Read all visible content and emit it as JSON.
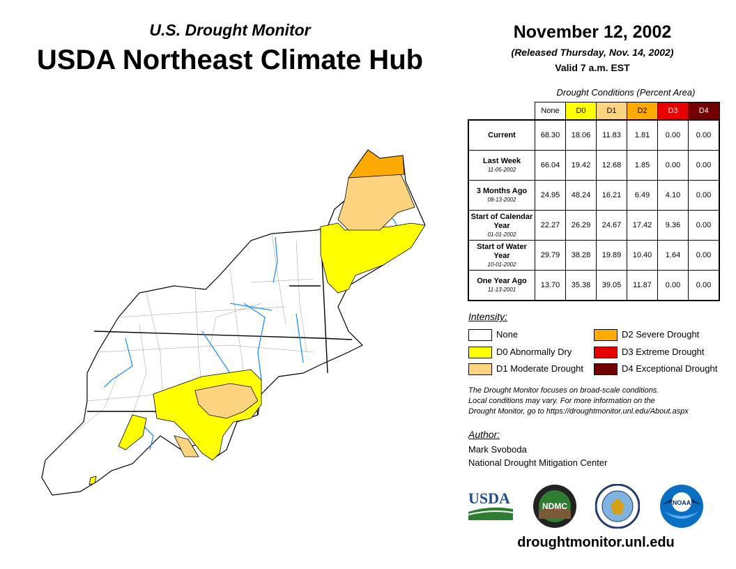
{
  "header": {
    "subtitle": "U.S. Drought Monitor",
    "title": "USDA Northeast Climate Hub",
    "date": "November 12, 2002",
    "released": "(Released Thursday, Nov. 14, 2002)",
    "valid": "Valid 7 a.m. EST"
  },
  "table": {
    "caption": "Drought Conditions (Percent Area)",
    "columns": [
      "None",
      "D0",
      "D1",
      "D2",
      "D3",
      "D4"
    ],
    "rows": [
      {
        "label": "Current",
        "date": "",
        "values": [
          "68.30",
          "18.06",
          "11.83",
          "1.81",
          "0.00",
          "0.00"
        ]
      },
      {
        "label": "Last Week",
        "date": "11-05-2002",
        "values": [
          "66.04",
          "19.42",
          "12.68",
          "1.85",
          "0.00",
          "0.00"
        ]
      },
      {
        "label": "3 Months Ago",
        "date": "08-13-2002",
        "values": [
          "24.95",
          "48.24",
          "16.21",
          "6.49",
          "4.10",
          "0.00"
        ]
      },
      {
        "label": "Start of Calendar Year",
        "date": "01-01-2002",
        "values": [
          "22.27",
          "26.29",
          "24.67",
          "17.42",
          "9.36",
          "0.00"
        ]
      },
      {
        "label": "Start of Water Year",
        "date": "10-01-2002",
        "values": [
          "29.79",
          "38.28",
          "19.89",
          "10.40",
          "1.64",
          "0.00"
        ]
      },
      {
        "label": "One Year Ago",
        "date": "11-13-2001",
        "values": [
          "13.70",
          "35.38",
          "39.05",
          "11.87",
          "0.00",
          "0.00"
        ]
      }
    ]
  },
  "legend": {
    "title": "Intensity:",
    "items": [
      {
        "label": "None",
        "color": "#ffffff"
      },
      {
        "label": "D0 Abnormally Dry",
        "color": "#ffff00"
      },
      {
        "label": "D1 Moderate Drought",
        "color": "#fcd37f"
      },
      {
        "label": "D2 Severe Drought",
        "color": "#ffaa00"
      },
      {
        "label": "D3 Extreme Drought",
        "color": "#e60000"
      },
      {
        "label": "D4 Exceptional Drought",
        "color": "#730000"
      }
    ]
  },
  "note": {
    "line1": "The Drought Monitor focuses on broad-scale conditions.",
    "line2": "Local conditions may vary. For more information on the",
    "line3": "Drought Monitor, go to https://droughtmonitor.unl.edu/About.aspx"
  },
  "author": {
    "title": "Author:",
    "name": "Mark Svoboda",
    "org": "National Drought Mitigation Center"
  },
  "logos": {
    "usda": "USDA",
    "ndmc": "NDMC",
    "noaa": "NOAA"
  },
  "website": "droughtmonitor.unl.edu"
}
